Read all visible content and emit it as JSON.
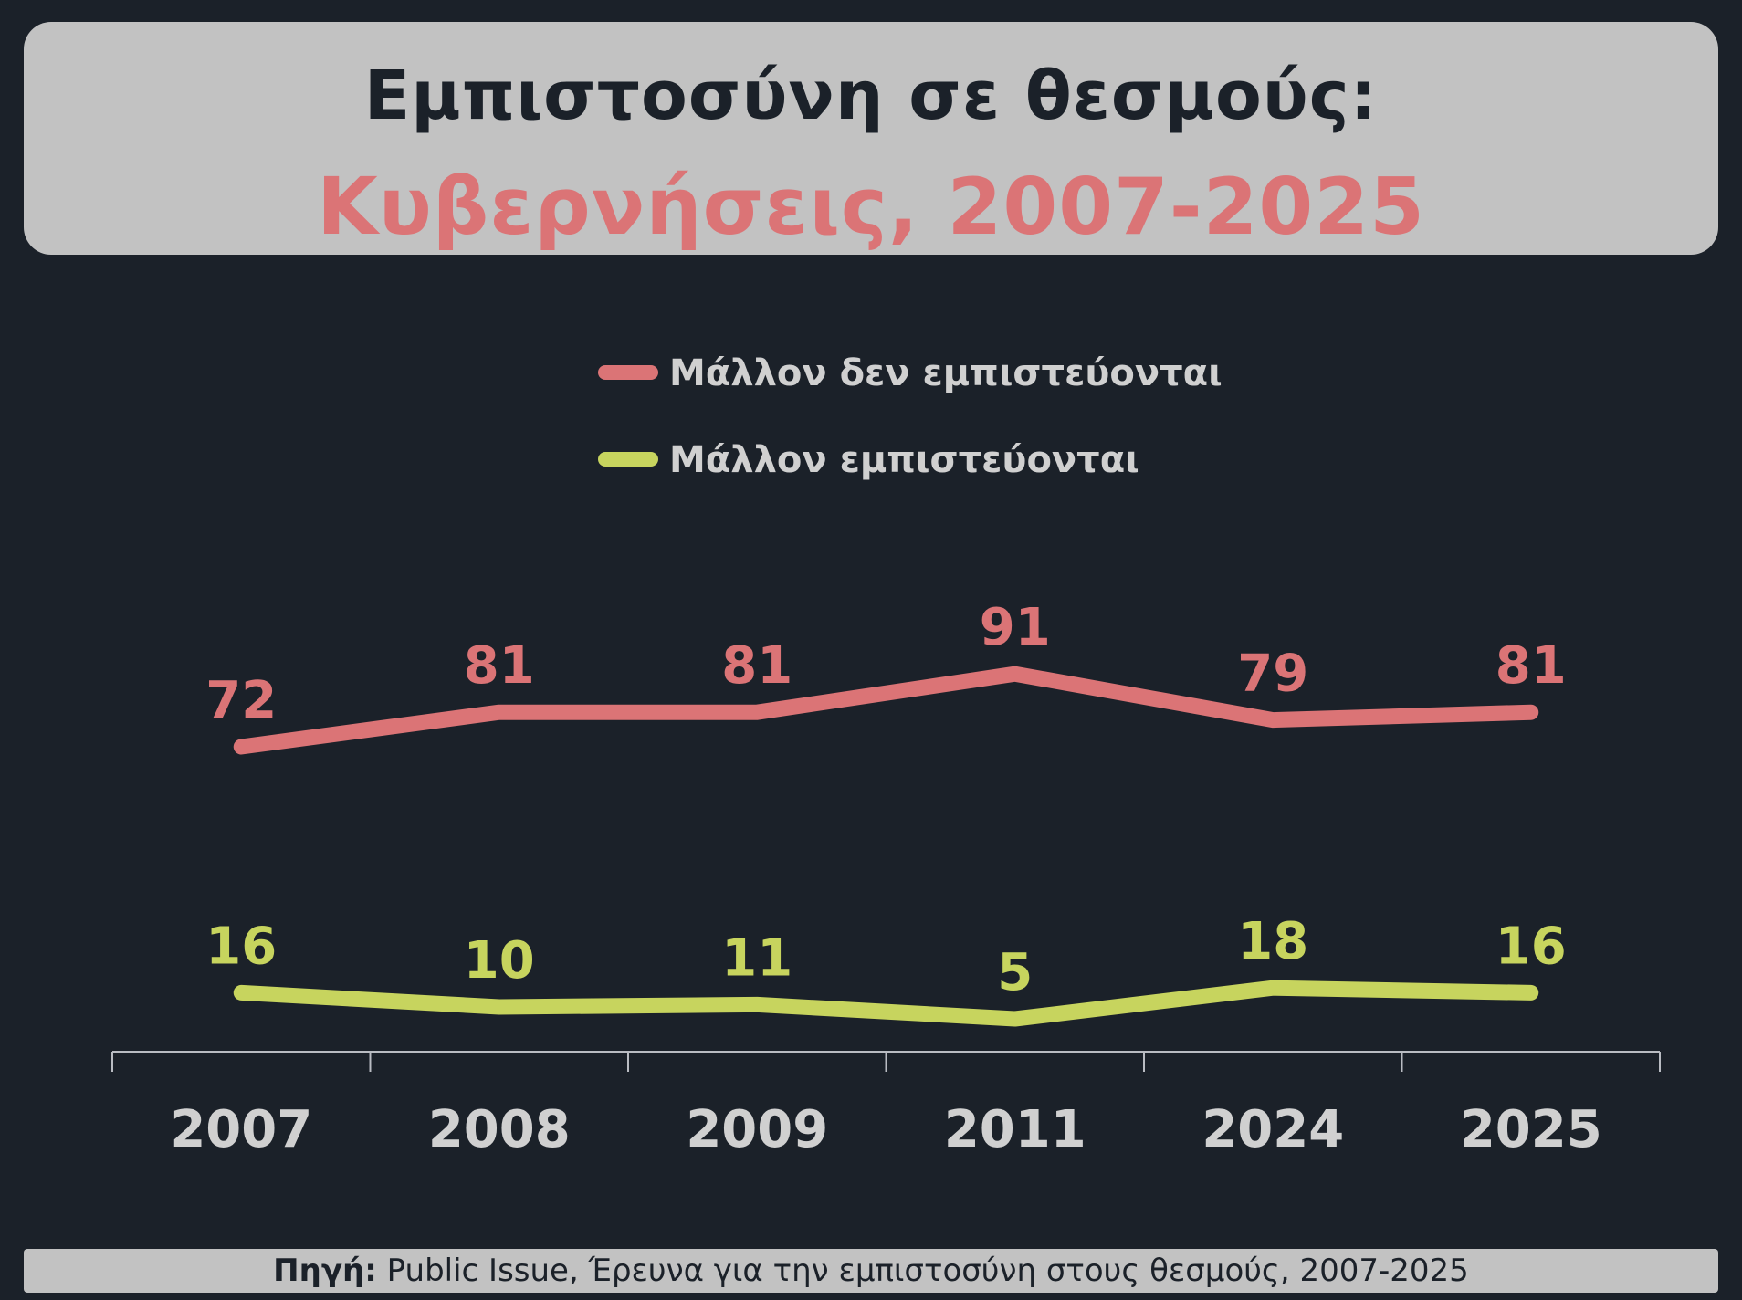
{
  "header": {
    "title": "Εμπιστοσύνη σε θεσμούς:",
    "subtitle": "Κυβερνήσεις, 2007-2025"
  },
  "source": {
    "label": "Πηγή:",
    "text": "Public Issue, Έρευνα για την εμπιστοσύνη στους θεσμούς, 2007-2025"
  },
  "colors": {
    "background": "#1b2129",
    "trust": "#c7d45e",
    "distrust": "#db7476",
    "axis": "#b9bcc2",
    "tick_label": "#d0d0d0",
    "legend_text": "#d0d0d0"
  },
  "chart_data": {
    "type": "line",
    "categories": [
      "2007",
      "2008",
      "2009",
      "2011",
      "2024",
      "2025"
    ],
    "series": [
      {
        "name": "Μάλλον εμπιστεύονται",
        "values": [
          16,
          10,
          11,
          5,
          18,
          16
        ],
        "color": "#c7d45e"
      },
      {
        "name": "Μάλλον δεν εμπιστεύονται",
        "values": [
          72,
          81,
          81,
          91,
          79,
          81
        ],
        "color": "#db7476"
      }
    ],
    "ylim": [
      0,
      100
    ],
    "grid": false,
    "legend_position": "top-center",
    "data_labels": true
  }
}
